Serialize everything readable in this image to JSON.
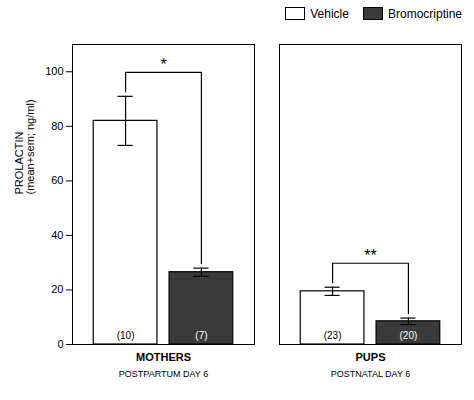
{
  "chart_data": {
    "type": "bar",
    "categories": [
      "MOTHERS",
      "PUPS"
    ],
    "category_sublabels": [
      "POSTPARTUM DAY 6",
      "POSTNATAL DAY 6"
    ],
    "ylabel": "PROLACTIN\n(mean+sem; ng/ml)",
    "ylim": [
      0,
      110
    ],
    "yticks": [
      0,
      20,
      40,
      60,
      80,
      100
    ],
    "series": [
      {
        "name": "Vehicle",
        "color": "white",
        "values": [
          82,
          19.5
        ],
        "errors": [
          9,
          1.5
        ],
        "n_labels": [
          "(10)",
          "(23)"
        ]
      },
      {
        "name": "Bromocriptine",
        "color": "#3a3a3a",
        "values": [
          26.5,
          8.5
        ],
        "errors": [
          1.5,
          1.2
        ],
        "n_labels": [
          "(7)",
          "(20)"
        ]
      }
    ],
    "significance": [
      "*",
      "**"
    ],
    "legend": "upper right",
    "grid": false
  }
}
